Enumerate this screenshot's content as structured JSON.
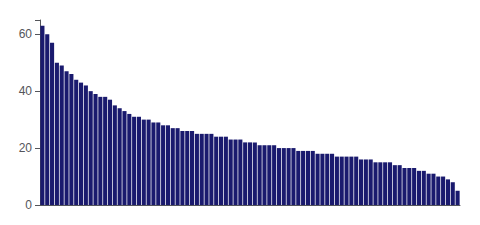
{
  "chart_data": {
    "type": "bar",
    "categories": [
      null,
      null,
      null,
      null,
      null,
      null,
      null,
      null,
      null,
      null,
      null,
      null,
      null,
      null,
      null,
      null,
      null,
      null,
      null,
      null,
      null,
      null,
      null,
      null,
      null,
      null,
      null,
      null,
      null,
      null,
      null,
      null,
      null,
      null,
      null,
      null,
      null,
      null,
      null,
      null,
      null,
      null,
      null,
      null,
      null,
      null,
      null,
      null,
      null,
      null,
      null,
      null,
      null,
      null,
      null,
      null,
      null,
      null,
      null,
      null,
      null,
      null,
      null,
      null,
      null,
      null,
      null,
      null,
      null,
      null,
      null,
      null,
      null,
      null,
      null,
      null,
      null,
      null,
      null,
      null,
      null,
      null,
      null,
      null,
      null,
      null,
      null
    ],
    "values": [
      63,
      60,
      57,
      50,
      49,
      47,
      46,
      44,
      43,
      42,
      40,
      39,
      38,
      38,
      37,
      35,
      34,
      33,
      32,
      31,
      31,
      30,
      30,
      29,
      29,
      28,
      28,
      27,
      27,
      26,
      26,
      26,
      25,
      25,
      25,
      25,
      24,
      24,
      24,
      23,
      23,
      23,
      22,
      22,
      22,
      21,
      21,
      21,
      21,
      20,
      20,
      20,
      20,
      19,
      19,
      19,
      19,
      18,
      18,
      18,
      18,
      17,
      17,
      17,
      17,
      17,
      16,
      16,
      16,
      15,
      15,
      15,
      15,
      14,
      14,
      13,
      13,
      13,
      12,
      12,
      11,
      11,
      10,
      10,
      9,
      8,
      5
    ],
    "color": "#1a1a6e",
    "ylim": [
      0,
      65
    ],
    "yticks": [
      0,
      20,
      40,
      60
    ],
    "grid": false,
    "tick_labels": "y"
  }
}
